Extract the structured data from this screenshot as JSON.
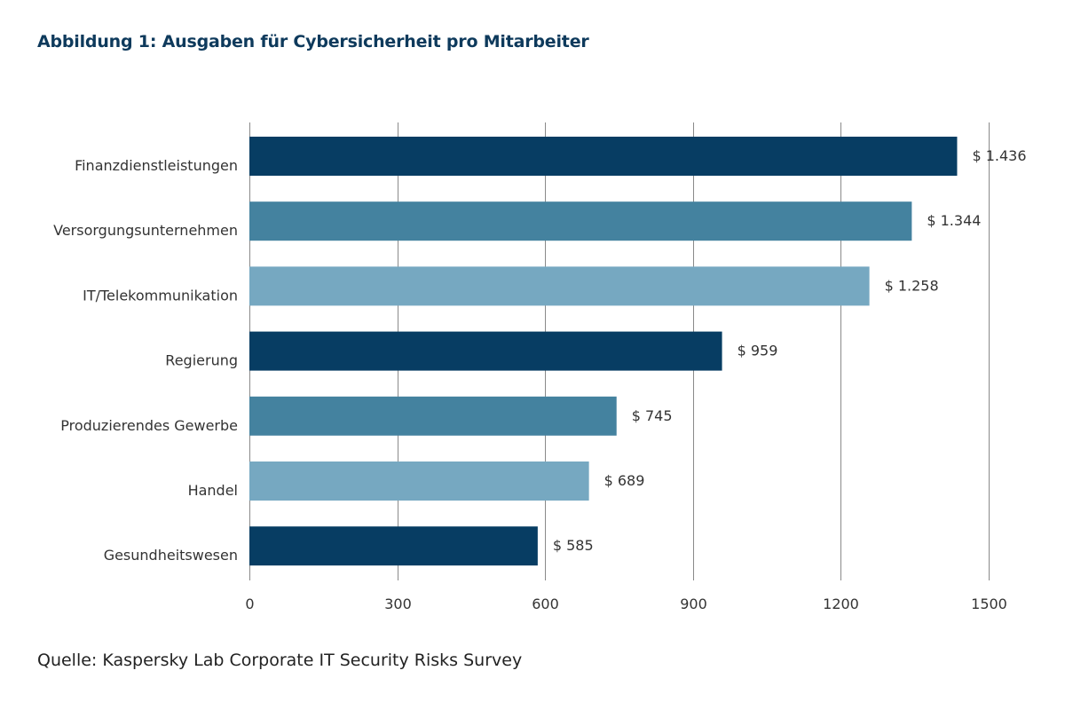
{
  "chart_data": {
    "type": "bar",
    "orientation": "horizontal",
    "title": "Abbildung 1: Ausgaben für Cybersicherheit pro Mitarbeiter",
    "source": "Quelle: Kaspersky Lab Corporate IT Security Risks Survey",
    "categories": [
      "Finanzdienstleistungen",
      "Versorgungsunternehmen",
      "IT/Telekommunikation",
      "Regierung",
      "Produzierendes Gewerbe",
      "Handel",
      "Gesundheitswesen"
    ],
    "values": [
      1436,
      1344,
      1258,
      959,
      745,
      689,
      585
    ],
    "value_labels": [
      "$ 1.436",
      "$ 1.344",
      "$ 1.258",
      "$ 959",
      "$ 745",
      "$ 689",
      "$ 585"
    ],
    "bar_colors": [
      "#073d63",
      "#44829f",
      "#76a8c1",
      "#073d63",
      "#44829f",
      "#76a8c1",
      "#073d63"
    ],
    "xlim": [
      0,
      1500
    ],
    "xticks": [
      0,
      300,
      600,
      900,
      1200,
      1500
    ],
    "xtick_labels": [
      "0",
      "300",
      "600",
      "900",
      "1200",
      "1500"
    ],
    "grid": true,
    "gridline_color": "#8a8a8a",
    "title_color": "#0e3a5c",
    "legend": false
  }
}
